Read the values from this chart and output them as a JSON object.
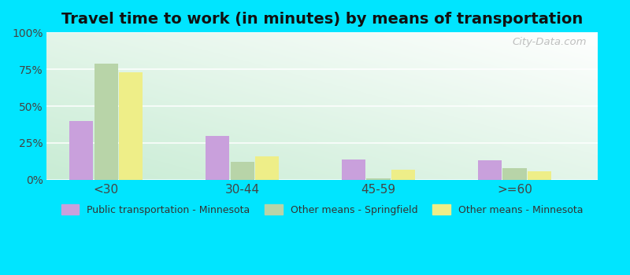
{
  "title": "Travel time to work (in minutes) by means of transportation",
  "categories": [
    "<30",
    "30-44",
    "45-59",
    ">=60"
  ],
  "series": [
    {
      "name": "Public transportation - Minnesota",
      "color": "#c9a0dc",
      "values": [
        40,
        30,
        14,
        13
      ]
    },
    {
      "name": "Other means - Springfield",
      "color": "#b8d4a8",
      "values": [
        79,
        12,
        1,
        8
      ]
    },
    {
      "name": "Other means - Minnesota",
      "color": "#eeee88",
      "values": [
        73,
        16,
        7,
        6
      ]
    }
  ],
  "ylim": [
    0,
    100
  ],
  "yticks": [
    0,
    25,
    50,
    75,
    100
  ],
  "ytick_labels": [
    "0%",
    "25%",
    "50%",
    "75%",
    "100%"
  ],
  "outer_bg": "#00e5ff",
  "title_fontsize": 14,
  "watermark": "City-Data.com",
  "bar_width": 0.2,
  "group_positions": [
    0.4,
    1.55,
    2.7,
    3.85
  ],
  "xlim": [
    -0.1,
    4.55
  ]
}
